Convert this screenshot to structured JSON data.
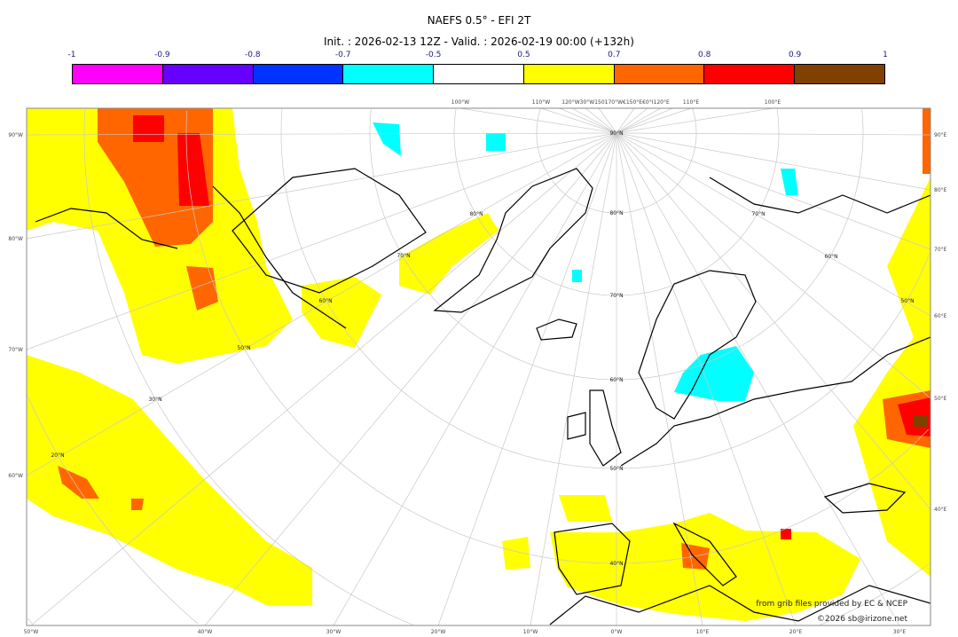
{
  "title": "NAEFS 0.5° - EFI 2T",
  "subtitle": "Init. : 2026-02-13 12Z - Valid. : 2026-02-19 00:00 (+132h)",
  "colorbar": {
    "labels": [
      "-1",
      "-0.9",
      "-0.8",
      "-0.7",
      "-0.5",
      "0.5",
      "0.7",
      "0.8",
      "0.9",
      "1"
    ],
    "colors": [
      "#ff00ff",
      "#6600ff",
      "#0033ff",
      "#00ffff",
      "#ffffff",
      "#ffff00",
      "#ff6600",
      "#ff0000",
      "#804000"
    ]
  },
  "axes": {
    "bottom": [
      "50°W",
      "40°W",
      "30°W",
      "20°W",
      "10°W",
      "0°W",
      "10°E",
      "20°E",
      "30°E"
    ],
    "left": [
      "90°W",
      "80°W",
      "70°W",
      "60°W"
    ],
    "right": [
      "90°E",
      "80°E",
      "70°E",
      "60°E",
      "50°E",
      "40°E"
    ],
    "top": [
      "100°W",
      "110°W",
      "120°W30°W150170°W€150°E€0°I120°E",
      "110°E",
      "100°E"
    ]
  },
  "latitude_labels": [
    "90°N",
    "80°N",
    "70°N",
    "60°N",
    "50°N",
    "40°N",
    "30°N",
    "20°N",
    "80°N",
    "70°N",
    "60°N",
    "50°N",
    "70°N",
    "60°N",
    "50°N"
  ],
  "credits": {
    "source": "from grib files provided by EC & NCEP",
    "copyright": "©2026 sb@irizone.net"
  }
}
